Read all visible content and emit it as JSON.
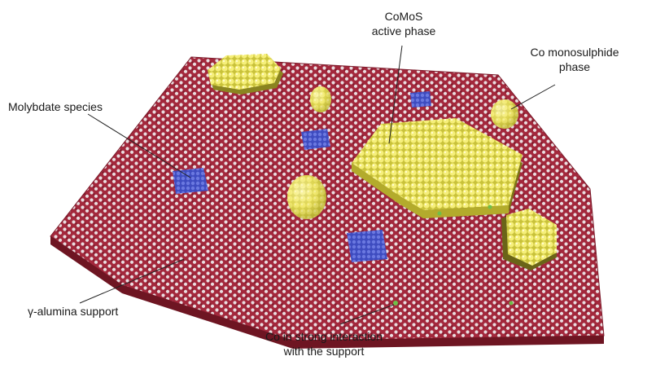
{
  "labels": {
    "comos_line1": "CoMoS",
    "comos_line2": "active phase",
    "co_mono_line1": "Co monosulphide",
    "co_mono_line2": "phase",
    "molybdate": "Molybdate species",
    "alumina": "γ-alumina support",
    "co_strong_line1": "Co in strong interaction",
    "co_strong_line2": "with the support"
  },
  "colors": {
    "support": "#9e2a3a",
    "support_highlight": "#e8d6d9",
    "sulfur": "#f2ea6a",
    "molybdate": "#4a58c8",
    "cobalt": "#6fbf4a",
    "leader": "#222222"
  }
}
